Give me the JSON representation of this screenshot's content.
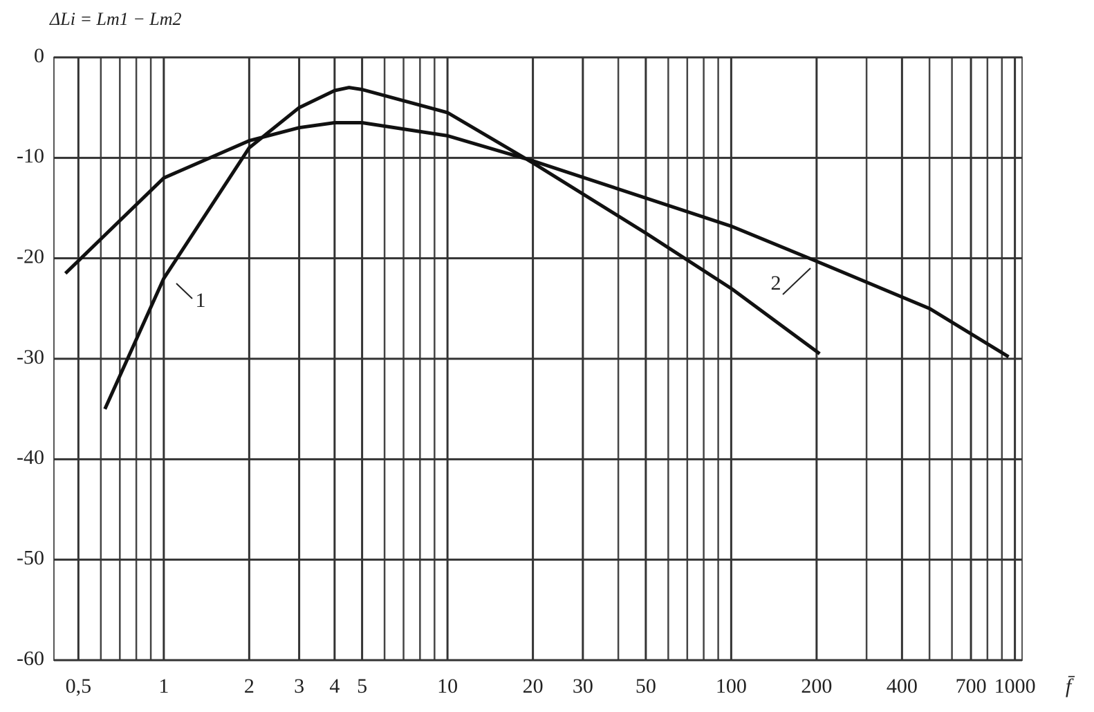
{
  "chart_data": {
    "type": "line",
    "title": "ΔLi = Lm1 − Lm2",
    "x_label": "f̄",
    "xscale": "log",
    "grid": true,
    "xlim": [
      0.41,
      1060
    ],
    "ylim": [
      -60,
      0
    ],
    "xticks": [
      {
        "value": 0.5,
        "label": "0,5"
      },
      1,
      2,
      3,
      4,
      5,
      10,
      20,
      30,
      50,
      100,
      200,
      400,
      700,
      1000
    ],
    "xminorticks": [
      0.6,
      0.7,
      0.8,
      0.9,
      6,
      7,
      8,
      9,
      40,
      60,
      70,
      80,
      90,
      300,
      500,
      600,
      800,
      900
    ],
    "yticks": [
      0,
      -10,
      -20,
      -30,
      -40,
      -50,
      -60
    ],
    "series": [
      {
        "name": "1",
        "color": "#111111",
        "x": [
          0.62,
          1,
          2,
          3,
          4,
          4.5,
          5,
          10,
          20,
          50,
          100,
          205
        ],
        "values": [
          -35,
          -22,
          -9,
          -5,
          -3.3,
          -3,
          -3.2,
          -5.5,
          -10.5,
          -17.5,
          -23,
          -29.5
        ]
      },
      {
        "name": "2",
        "color": "#111111",
        "x": [
          0.45,
          1,
          2,
          3,
          4,
          5,
          10,
          20,
          50,
          100,
          200,
          500,
          950
        ],
        "values": [
          -21.5,
          -12,
          -8.3,
          -7,
          -6.5,
          -6.5,
          -7.8,
          -10.3,
          -14,
          -16.8,
          -20.3,
          -25,
          -29.8
        ]
      }
    ]
  }
}
